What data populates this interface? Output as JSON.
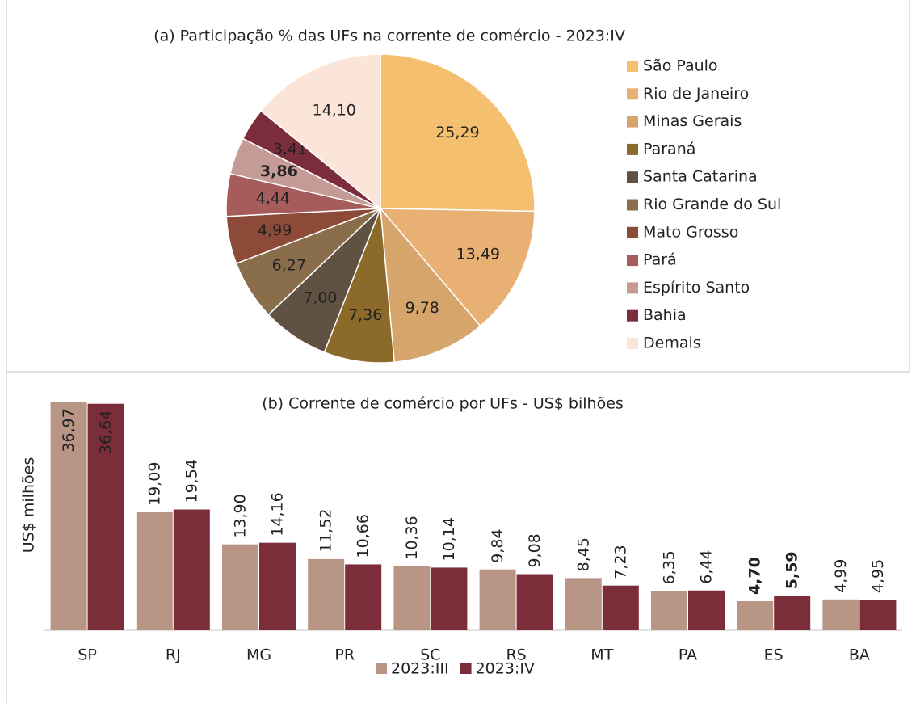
{
  "chart_data": [
    {
      "type": "pie",
      "title": "(a) Participação % das UFs na corrente de comércio - 2023:IV",
      "categories": [
        "São Paulo",
        "Rio de Janeiro",
        "Minas Gerais",
        "Paraná",
        "Santa Catarina",
        "Rio Grande do Sul",
        "Mato Grosso",
        "Pará",
        "Espírito Santo",
        "Bahia",
        "Demais"
      ],
      "values": [
        25.29,
        13.49,
        9.78,
        7.36,
        7.0,
        6.27,
        4.99,
        4.44,
        3.86,
        3.41,
        14.1
      ],
      "value_labels": [
        "25,29",
        "13,49",
        "9,78",
        "7,36",
        "7,00",
        "6,27",
        "4,99",
        "4,44",
        "3,86",
        "3,41",
        "14,10"
      ],
      "colors": [
        "#f4c06f",
        "#e8b073",
        "#d6a56c",
        "#8c6a2a",
        "#5f5242",
        "#8a6d4b",
        "#8d4a39",
        "#a65c5b",
        "#c59b95",
        "#7b2d3b",
        "#fbe5d8"
      ],
      "bold_labels": [
        8
      ],
      "legend": "right"
    },
    {
      "type": "bar",
      "title": "(b) Corrente de comércio por UFs - US$ bilhões",
      "y_label": "US$ milhões",
      "categories": [
        "SP",
        "RJ",
        "MG",
        "PR",
        "SC",
        "RS",
        "MT",
        "PA",
        "ES",
        "BA"
      ],
      "series": [
        {
          "name": "2023:III",
          "color": "#b89585",
          "values": [
            36.97,
            19.09,
            13.9,
            11.52,
            10.36,
            9.84,
            8.45,
            6.35,
            4.7,
            4.99
          ],
          "value_labels": [
            "36,97",
            "19,09",
            "13,90",
            "11,52",
            "10,36",
            "9,84",
            "8,45",
            "6,35",
            "4,70",
            "4,99"
          ],
          "bold_labels": [
            8
          ]
        },
        {
          "name": "2023:IV",
          "color": "#7b2d3a",
          "values": [
            36.64,
            19.54,
            14.16,
            10.66,
            10.14,
            9.08,
            7.23,
            6.44,
            5.59,
            4.95
          ],
          "value_labels": [
            "36,64",
            "19,54",
            "14,16",
            "10,66",
            "10,14",
            "9,08",
            "7,23",
            "6,44",
            "5,59",
            "4,95"
          ],
          "bold_labels": [
            8
          ]
        }
      ],
      "ylim": [
        0,
        40
      ],
      "legend": "bottom"
    }
  ]
}
